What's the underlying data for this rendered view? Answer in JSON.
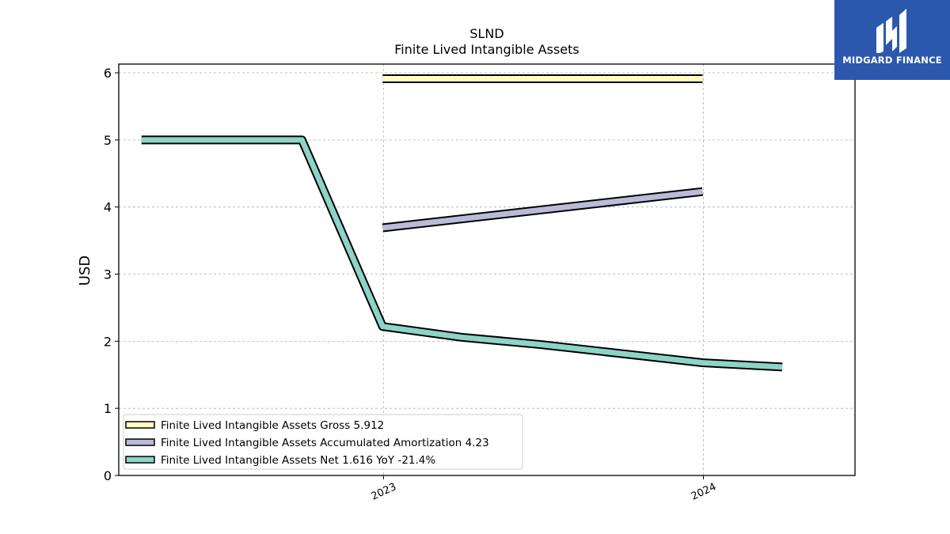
{
  "chart_data": {
    "type": "line",
    "title": "SLND",
    "subtitle": "Finite Lived Intangible Assets",
    "xlabel": "",
    "ylabel": "USD",
    "x_ticks": [
      "2023",
      "2024"
    ],
    "y_ticks": [
      "0",
      "1",
      "2",
      "3",
      "4",
      "5",
      "6"
    ],
    "ylim": [
      0,
      6.13
    ],
    "xlim": [
      "2022-03-05",
      "2024-06-22"
    ],
    "grid": true,
    "legend_position": "lower-left",
    "series": [
      {
        "name": "Finite Lived Intangible Assets Gross",
        "legend_label": "Finite Lived Intangible Assets Gross  5.912",
        "color": "#ffffbf",
        "points": [
          [
            "2022-12-31",
            5.912
          ],
          [
            "2023-12-31",
            5.912
          ]
        ]
      },
      {
        "name": "Finite Lived Intangible Assets Accumulated Amortization",
        "legend_label": "Finite Lived Intangible Assets Accumulated Amortization  4.23",
        "color": "#bcbad9",
        "points": [
          [
            "2022-12-31",
            3.69
          ],
          [
            "2023-12-31",
            4.23
          ]
        ]
      },
      {
        "name": "Finite Lived Intangible Assets Net",
        "legend_label": "Finite Lived Intangible Assets Net  1.616 YoY -21.4%",
        "color": "#8dd3c7",
        "points": [
          [
            "2022-03-31",
            5.0
          ],
          [
            "2022-09-30",
            5.0
          ],
          [
            "2022-12-31",
            2.22
          ],
          [
            "2023-03-31",
            2.06
          ],
          [
            "2023-06-30",
            1.95
          ],
          [
            "2023-12-31",
            1.68
          ],
          [
            "2024-03-31",
            1.616
          ]
        ]
      }
    ]
  },
  "logo": {
    "text": "MIDGARD FINANCE",
    "color": "#2b58ad"
  }
}
